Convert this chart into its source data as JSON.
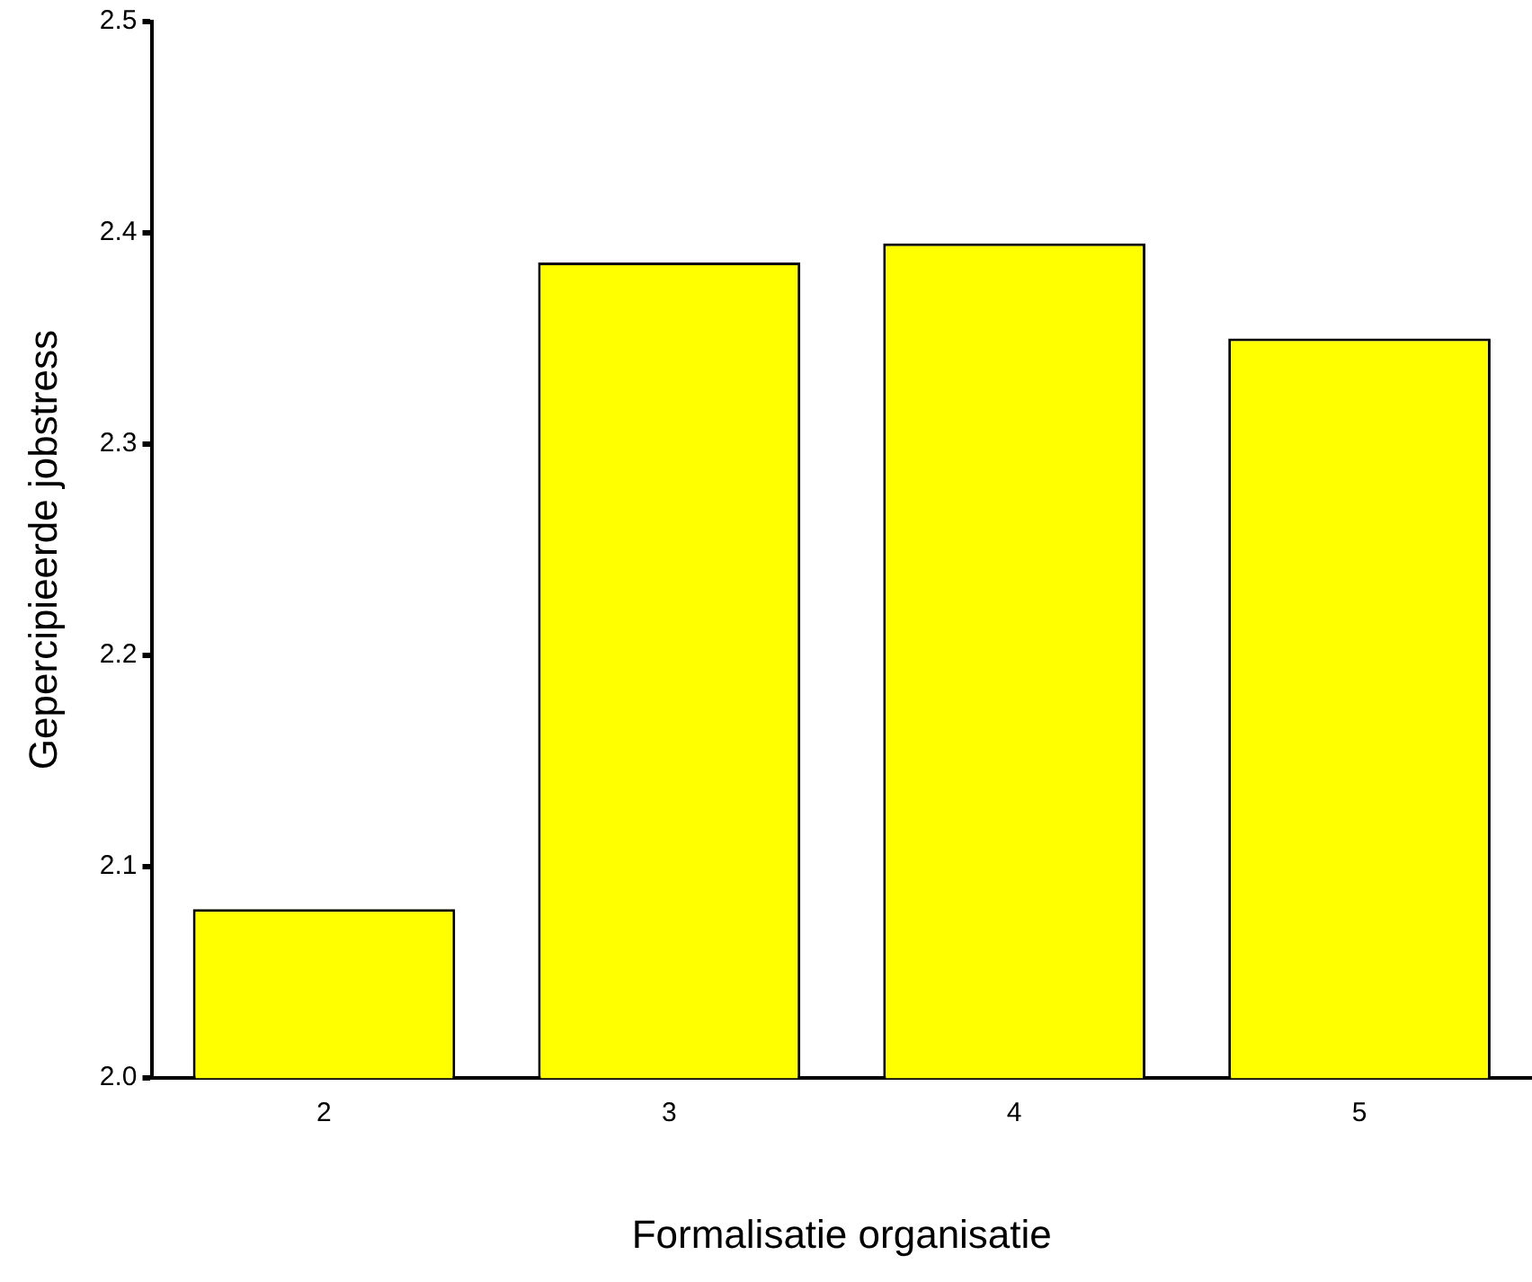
{
  "chart_data": {
    "type": "bar",
    "xlabel": "Formalisatie organisatie",
    "ylabel": "Gepercipieerde jobstress",
    "categories": [
      "2",
      "3",
      "4",
      "5"
    ],
    "series": [
      {
        "color": "#ffff00",
        "values": [
          2.08,
          2.386,
          2.395,
          2.35
        ]
      }
    ],
    "ylim": [
      2.0,
      2.5
    ],
    "yticks": [
      {
        "value": 2.0,
        "label": "2.0"
      },
      {
        "value": 2.1,
        "label": "2.1"
      },
      {
        "value": 2.2,
        "label": "2.2"
      },
      {
        "value": 2.3,
        "label": "2.3"
      },
      {
        "value": 2.4,
        "label": "2.4"
      },
      {
        "value": 2.5,
        "label": "2.5"
      }
    ],
    "grid": false,
    "legend": false
  }
}
